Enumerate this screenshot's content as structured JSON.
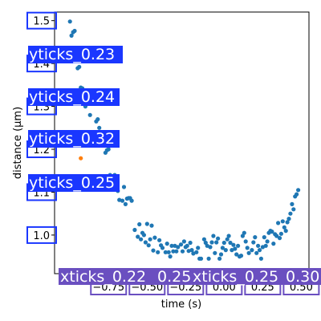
{
  "chart_data": {
    "type": "scatter",
    "title": "",
    "xlabel": "time (s)",
    "ylabel": "distance (μm)",
    "xlim": [
      -1.1,
      0.55
    ],
    "ylim": [
      0.91,
      1.52
    ],
    "xticks": [
      -0.75,
      -0.5,
      -0.25,
      0.0,
      0.25,
      0.5
    ],
    "xtick_labels": [
      "−0.75",
      "−0.50",
      "−0.25",
      "0.00",
      "0.25",
      "0.50"
    ],
    "yticks": [
      1.0,
      1.1,
      1.2,
      1.3,
      1.4,
      1.5
    ],
    "ytick_labels": [
      "1.0",
      "1.1",
      "1.2",
      "1.3",
      "1.4",
      "1.5"
    ],
    "grid": false,
    "legend": "none",
    "series": [
      {
        "color": "#1f77b4",
        "points": [
          [
            -1.0,
            1.498
          ],
          [
            -0.99,
            1.465
          ],
          [
            -0.98,
            1.473
          ],
          [
            -0.97,
            1.476
          ],
          [
            -0.96,
            1.41
          ],
          [
            -0.95,
            1.389
          ],
          [
            -0.94,
            1.392
          ],
          [
            -0.93,
            1.344
          ],
          [
            -0.92,
            1.342
          ],
          [
            -0.91,
            1.33
          ],
          [
            -0.9,
            1.3
          ],
          [
            -0.87,
            1.28
          ],
          [
            -0.85,
            1.235
          ],
          [
            -0.83,
            1.265
          ],
          [
            -0.82,
            1.27
          ],
          [
            -0.81,
            1.25
          ],
          [
            -0.8,
            1.232
          ],
          [
            -0.78,
            1.228
          ],
          [
            -0.77,
            1.192
          ],
          [
            -0.76,
            1.198
          ],
          [
            -0.75,
            1.2
          ],
          [
            -0.74,
            1.14
          ],
          [
            -0.73,
            1.118
          ],
          [
            -0.72,
            1.13
          ],
          [
            -0.71,
            1.14
          ],
          [
            -0.7,
            1.118
          ],
          [
            -0.69,
            1.103
          ],
          [
            -0.68,
            1.082
          ],
          [
            -0.66,
            1.08
          ],
          [
            -0.65,
            1.112
          ],
          [
            -0.64,
            1.072
          ],
          [
            -0.63,
            1.085
          ],
          [
            -0.62,
            1.086
          ],
          [
            -0.61,
            1.086
          ],
          [
            -0.6,
            1.08
          ],
          [
            -0.58,
            1.012
          ],
          [
            -0.56,
            0.996
          ],
          [
            -0.55,
            1.025
          ],
          [
            -0.54,
            0.99
          ],
          [
            -0.53,
            1.005
          ],
          [
            -0.52,
            1.0
          ],
          [
            -0.51,
            0.983
          ],
          [
            -0.5,
            1.026
          ],
          [
            -0.49,
            0.976
          ],
          [
            -0.48,
            0.99
          ],
          [
            -0.47,
            1.022
          ],
          [
            -0.46,
            0.964
          ],
          [
            -0.45,
            0.994
          ],
          [
            -0.43,
            0.96
          ],
          [
            -0.42,
            0.988
          ],
          [
            -0.41,
            0.976
          ],
          [
            -0.4,
            0.97
          ],
          [
            -0.38,
            0.96
          ],
          [
            -0.37,
            0.98
          ],
          [
            -0.36,
            0.96
          ],
          [
            -0.35,
            0.95
          ],
          [
            -0.34,
            0.975
          ],
          [
            -0.33,
            0.962
          ],
          [
            -0.32,
            0.975
          ],
          [
            -0.31,
            0.962
          ],
          [
            -0.3,
            0.972
          ],
          [
            -0.28,
            0.978
          ],
          [
            -0.27,
            0.962
          ],
          [
            -0.26,
            0.985
          ],
          [
            -0.25,
            0.972
          ],
          [
            -0.24,
            0.975
          ],
          [
            -0.23,
            0.963
          ],
          [
            -0.22,
            0.982
          ],
          [
            -0.21,
            0.965
          ],
          [
            -0.2,
            0.957
          ],
          [
            -0.18,
            0.96
          ],
          [
            -0.17,
            0.97
          ],
          [
            -0.16,
            0.945
          ],
          [
            -0.15,
            0.945
          ],
          [
            -0.13,
            0.99
          ],
          [
            -0.12,
            0.982
          ],
          [
            -0.11,
            0.975
          ],
          [
            -0.1,
            0.945
          ],
          [
            -0.09,
            0.972
          ],
          [
            -0.08,
            0.983
          ],
          [
            -0.07,
            0.998
          ],
          [
            -0.06,
            0.958
          ],
          [
            -0.05,
            0.983
          ],
          [
            -0.04,
            0.992
          ],
          [
            -0.03,
            0.945
          ],
          [
            -0.02,
            0.955
          ],
          [
            -0.01,
            0.97
          ],
          [
            0.0,
            0.982
          ],
          [
            0.01,
            0.965
          ],
          [
            0.02,
            0.99
          ],
          [
            0.03,
            0.998
          ],
          [
            0.04,
            0.982
          ],
          [
            0.05,
            0.965
          ],
          [
            0.06,
            0.977
          ],
          [
            0.07,
            0.968
          ],
          [
            0.08,
            0.955
          ],
          [
            0.09,
            0.975
          ],
          [
            0.1,
            0.95
          ],
          [
            0.11,
            0.952
          ],
          [
            0.12,
            0.998
          ],
          [
            0.13,
            1.005
          ],
          [
            0.14,
            0.985
          ],
          [
            0.15,
            0.97
          ],
          [
            0.16,
            0.958
          ],
          [
            0.18,
            0.965
          ],
          [
            0.19,
            0.983
          ],
          [
            0.2,
            0.995
          ],
          [
            0.21,
            0.958
          ],
          [
            0.22,
            0.975
          ],
          [
            0.23,
            0.965
          ],
          [
            0.24,
            0.945
          ],
          [
            0.25,
            0.972
          ],
          [
            0.26,
            0.995
          ],
          [
            0.27,
            0.975
          ],
          [
            0.28,
            0.985
          ],
          [
            0.29,
            1.005
          ],
          [
            0.3,
            1.01
          ],
          [
            0.31,
            1.008
          ],
          [
            0.32,
            0.98
          ],
          [
            0.33,
            1.002
          ],
          [
            0.34,
            0.998
          ],
          [
            0.35,
            1.028
          ],
          [
            0.36,
            0.993
          ],
          [
            0.37,
            1.003
          ],
          [
            0.38,
            1.032
          ],
          [
            0.39,
            1.018
          ],
          [
            0.4,
            1.01
          ],
          [
            0.41,
            1.03
          ],
          [
            0.42,
            1.038
          ],
          [
            0.43,
            1.05
          ],
          [
            0.44,
            1.072
          ],
          [
            0.45,
            1.06
          ],
          [
            0.46,
            1.09
          ],
          [
            0.47,
            1.095
          ],
          [
            0.48,
            1.105
          ]
        ]
      },
      {
        "color": "#ff7f0e",
        "points": [
          [
            -0.93,
            1.179
          ]
        ]
      }
    ],
    "annotations": [
      {
        "text": "yticks_0.23",
        "color": "#1a37ff"
      },
      {
        "text": "yticks_0.24",
        "color": "#1a37ff"
      },
      {
        "text": "yticks_0.32",
        "color": "#1a37ff"
      },
      {
        "text": "yticks_0.25",
        "color": "#1a37ff"
      },
      {
        "text": "xticks_0.22",
        "color": "#6a4fc0"
      },
      {
        "text": "0.25",
        "color": "#6a4fc0"
      },
      {
        "text": "xticks_0.25",
        "color": "#6a4fc0"
      },
      {
        "text": "0.30",
        "color": "#6a4fc0"
      }
    ]
  }
}
